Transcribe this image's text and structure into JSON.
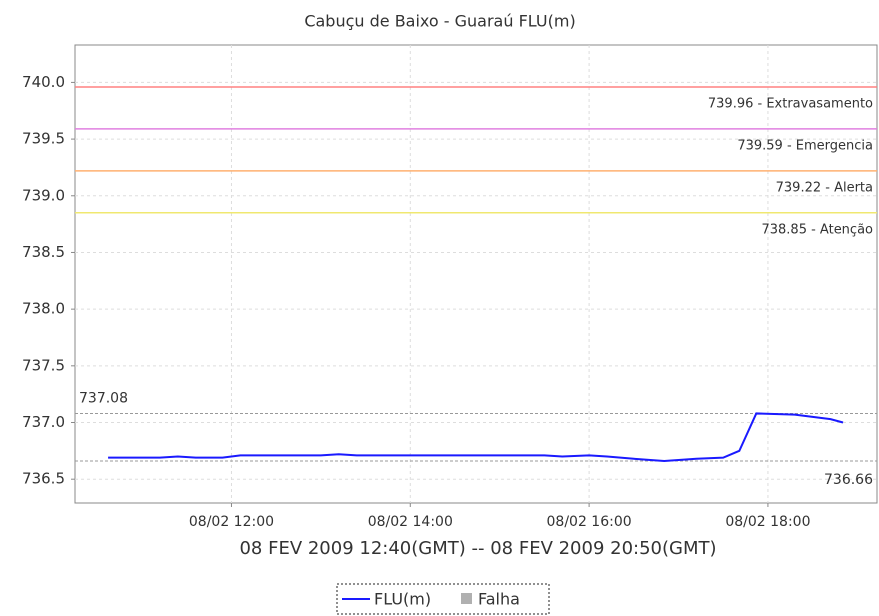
{
  "chart_data": {
    "type": "line",
    "title": "Cabuçu de Baixo - Guaraú FLU(m)",
    "x_label": "08 FEV 2009 12:40(GMT) -- 08 FEV 2009 20:50(GMT)",
    "x": [
      10.62,
      10.9,
      11.2,
      11.4,
      11.6,
      11.9,
      12.1,
      12.5,
      13.0,
      13.2,
      13.4,
      14.0,
      14.5,
      15.0,
      15.5,
      15.7,
      16.0,
      16.2,
      16.5,
      16.84,
      17.2,
      17.5,
      17.68,
      17.87,
      18.3,
      18.7,
      18.84
    ],
    "series": [
      {
        "name": "FLU(m)",
        "color": "#1a1aff",
        "values": [
          736.69,
          736.69,
          736.69,
          736.7,
          736.69,
          736.69,
          736.71,
          736.71,
          736.71,
          736.72,
          736.71,
          736.71,
          736.71,
          736.71,
          736.71,
          736.7,
          736.71,
          736.7,
          736.68,
          736.66,
          736.68,
          736.69,
          736.75,
          737.08,
          737.07,
          737.03,
          737.0
        ]
      }
    ],
    "legend_extra": {
      "name": "Falha",
      "color": "#b0b0b0"
    },
    "xlim": [
      10.25,
      19.22
    ],
    "xticks": [
      {
        "value": 12,
        "label": "08/02 12:00"
      },
      {
        "value": 14,
        "label": "08/02 14:00"
      },
      {
        "value": 16,
        "label": "08/02 16:00"
      },
      {
        "value": 18,
        "label": "08/02 18:00"
      }
    ],
    "ylim": [
      736.29,
      740.33
    ],
    "yticks": [
      {
        "value": 736.5,
        "label": "736.5"
      },
      {
        "value": 737,
        "label": "737.0"
      },
      {
        "value": 737.5,
        "label": "737.5"
      },
      {
        "value": 738,
        "label": "738.0"
      },
      {
        "value": 738.5,
        "label": "738.5"
      },
      {
        "value": 739,
        "label": "739.0"
      },
      {
        "value": 739.5,
        "label": "739.5"
      },
      {
        "value": 740,
        "label": "740.0"
      }
    ],
    "thresholds": [
      {
        "value": 739.96,
        "label": "739.96 - Extravasamento",
        "color": "#ff8080"
      },
      {
        "value": 739.59,
        "label": "739.59 - Emergencia",
        "color": "#e080e0"
      },
      {
        "value": 739.22,
        "label": "739.22 - Alerta",
        "color": "#ffb070"
      },
      {
        "value": 738.85,
        "label": "738.85 - Atenção",
        "color": "#f0e870"
      }
    ],
    "reference_lines": [
      {
        "value": 737.08,
        "label": "737.08"
      },
      {
        "value": 736.66,
        "label": "736.66"
      }
    ],
    "grid": true
  }
}
